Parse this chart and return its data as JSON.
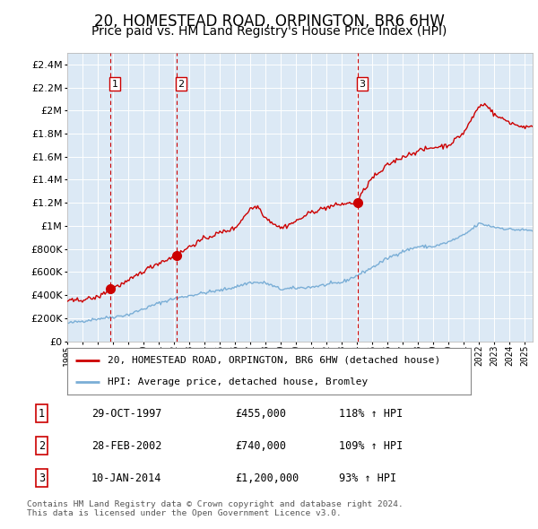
{
  "title": "20, HOMESTEAD ROAD, ORPINGTON, BR6 6HW",
  "subtitle": "Price paid vs. HM Land Registry's House Price Index (HPI)",
  "title_fontsize": 12,
  "subtitle_fontsize": 10,
  "plot_bg_color": "#dce9f5",
  "grid_color": "#ffffff",
  "ylim": [
    0,
    2500000
  ],
  "yticks": [
    0,
    200000,
    400000,
    600000,
    800000,
    1000000,
    1200000,
    1400000,
    1600000,
    1800000,
    2000000,
    2200000,
    2400000
  ],
  "transactions": [
    {
      "date_num": 1997.83,
      "price": 455000,
      "label": "1"
    },
    {
      "date_num": 2002.16,
      "price": 740000,
      "label": "2"
    },
    {
      "date_num": 2014.03,
      "price": 1200000,
      "label": "3"
    }
  ],
  "transaction_info": [
    {
      "label": "1",
      "date": "29-OCT-1997",
      "price": "£455,000",
      "hpi": "118% ↑ HPI"
    },
    {
      "label": "2",
      "date": "28-FEB-2002",
      "price": "£740,000",
      "hpi": "109% ↑ HPI"
    },
    {
      "label": "3",
      "date": "10-JAN-2014",
      "price": "£1,200,000",
      "hpi": "93% ↑ HPI"
    }
  ],
  "red_line_color": "#cc0000",
  "blue_line_color": "#7aaed6",
  "marker_color": "#cc0000",
  "dashed_line_color": "#cc0000",
  "legend_label_red": "20, HOMESTEAD ROAD, ORPINGTON, BR6 6HW (detached house)",
  "legend_label_blue": "HPI: Average price, detached house, Bromley",
  "footer": "Contains HM Land Registry data © Crown copyright and database right 2024.\nThis data is licensed under the Open Government Licence v3.0.",
  "xmin": 1995,
  "xmax": 2025.5
}
